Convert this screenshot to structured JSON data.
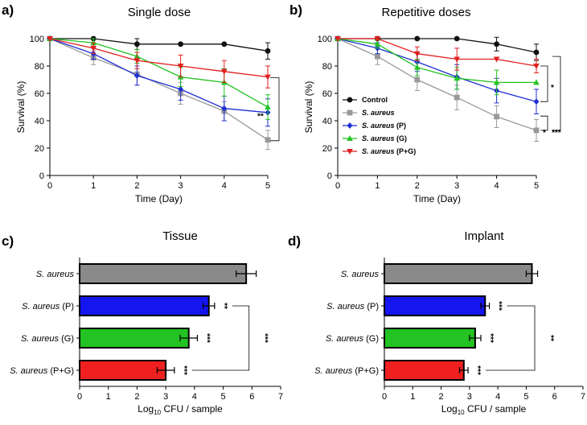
{
  "chart_data": [
    {
      "id": "a",
      "type": "line",
      "panel_label": "a)",
      "title": "Single dose",
      "xlabel": "Time (Day)",
      "ylabel": "Survival (%)",
      "xlim": [
        0,
        5
      ],
      "ylim": [
        0,
        100
      ],
      "x_ticks": [
        "0",
        "1",
        "2",
        "3",
        "4",
        "5"
      ],
      "y_ticks": [
        "0",
        "20",
        "40",
        "60",
        "80",
        "100"
      ],
      "x": [
        0,
        1,
        2,
        3,
        4,
        5
      ],
      "series": [
        {
          "name": "Control",
          "color": "#111111",
          "marker": "circle",
          "values": [
            100,
            100,
            96,
            96,
            96,
            91
          ],
          "errors": [
            0,
            0,
            4,
            0,
            0,
            6
          ]
        },
        {
          "name": "S. aureus",
          "color": "#999999",
          "marker": "square",
          "values": [
            100,
            86,
            74,
            60,
            47,
            26
          ],
          "errors": [
            0,
            5,
            8,
            8,
            7,
            7
          ]
        },
        {
          "name": "S. aureus (P)",
          "color": "#1f2fd6",
          "marker": "diamond",
          "values": [
            100,
            89,
            73,
            63,
            49,
            46
          ],
          "errors": [
            0,
            4,
            7,
            8,
            9,
            10
          ]
        },
        {
          "name": "S. aureus (G)",
          "color": "#22c322",
          "marker": "triangle-up",
          "values": [
            100,
            97,
            87,
            72,
            68,
            50
          ],
          "errors": [
            0,
            3,
            5,
            7,
            10,
            9
          ]
        },
        {
          "name": "S. aureus (P+G)",
          "color": "#e01f1f",
          "marker": "triangle-down",
          "values": [
            100,
            93,
            84,
            80,
            76,
            72
          ],
          "errors": [
            0,
            4,
            6,
            8,
            8,
            8
          ]
        }
      ],
      "significance": [
        {
          "label": "**",
          "between": [
            "S. aureus",
            "S. aureus (P+G)"
          ]
        }
      ]
    },
    {
      "id": "b",
      "type": "line",
      "panel_label": "b)",
      "title": "Repetitive doses",
      "xlabel": "Time (Day)",
      "ylabel": "Survival (%)",
      "xlim": [
        0,
        5
      ],
      "ylim": [
        0,
        100
      ],
      "x_ticks": [
        "0",
        "1",
        "2",
        "3",
        "4",
        "5"
      ],
      "y_ticks": [
        "0",
        "20",
        "40",
        "60",
        "80",
        "100"
      ],
      "x": [
        0,
        1,
        2,
        3,
        4,
        5
      ],
      "legend_placement": "bottom-left",
      "series": [
        {
          "name": "Control",
          "color": "#111111",
          "marker": "circle",
          "values": [
            100,
            100,
            100,
            100,
            96,
            90
          ],
          "errors": [
            0,
            0,
            0,
            0,
            5,
            6
          ]
        },
        {
          "name": "S. aureus",
          "color": "#999999",
          "marker": "square",
          "values": [
            100,
            87,
            70,
            57,
            43,
            33
          ],
          "errors": [
            0,
            6,
            8,
            9,
            8,
            8
          ]
        },
        {
          "name": "S. aureus (P)",
          "color": "#1f2fd6",
          "marker": "diamond",
          "values": [
            100,
            93,
            83,
            72,
            62,
            54
          ],
          "errors": [
            0,
            4,
            7,
            9,
            9,
            9
          ]
        },
        {
          "name": "S. aureus (G)",
          "color": "#22c322",
          "marker": "triangle-up",
          "values": [
            100,
            96,
            79,
            71,
            68,
            68
          ],
          "errors": [
            0,
            3,
            6,
            8,
            9,
            0
          ]
        },
        {
          "name": "S. aureus (P+G)",
          "color": "#e01f1f",
          "marker": "triangle-down",
          "values": [
            100,
            100,
            89,
            85,
            85,
            80
          ],
          "errors": [
            0,
            0,
            5,
            8,
            0,
            5
          ]
        }
      ],
      "legend": [
        {
          "prefix": "Control",
          "suffix": ""
        },
        {
          "prefix": "S. aureus",
          "suffix": ""
        },
        {
          "prefix": "S. aureus",
          "suffix": " (P)"
        },
        {
          "prefix": "S. aureus",
          "suffix": " (G)"
        },
        {
          "prefix": "S. aureus",
          "suffix": " (P+G)"
        }
      ],
      "significance": [
        {
          "label": "*",
          "between": [
            "S. aureus (P)",
            "S. aureus (P+G)"
          ]
        },
        {
          "label": "*",
          "between": [
            "S. aureus",
            "S. aureus (P)"
          ]
        },
        {
          "label": "***",
          "between": [
            "S. aureus",
            "S. aureus (P+G)"
          ]
        }
      ]
    },
    {
      "id": "c",
      "type": "bar",
      "orientation": "horizontal",
      "panel_label": "c)",
      "title": "Tissue",
      "xlabel_base": "Log",
      "xlabel_sub": "10",
      "xlabel_rest": " CFU / sample",
      "xlim": [
        0,
        7
      ],
      "x_ticks": [
        "0",
        "1",
        "2",
        "3",
        "4",
        "5",
        "6",
        "7"
      ],
      "categories": [
        {
          "italic": "S. aureus",
          "plain": ""
        },
        {
          "italic": "S. aureus",
          "plain": " (P)"
        },
        {
          "italic": "S. aureus",
          "plain": " (G)"
        },
        {
          "italic": "S. aureus",
          "plain": " (P+G)"
        }
      ],
      "values": [
        5.8,
        4.5,
        3.8,
        3.0
      ],
      "errors": [
        0.35,
        0.2,
        0.3,
        0.3
      ],
      "colors": [
        "#8a8a8a",
        "#1515f0",
        "#22c322",
        "#f02020"
      ],
      "bar_stars": [
        "",
        "**",
        "***",
        "***"
      ],
      "bracket": {
        "label": "***",
        "from": 1,
        "to": 3
      }
    },
    {
      "id": "d",
      "type": "bar",
      "orientation": "horizontal",
      "panel_label": "d)",
      "title": "Implant",
      "xlabel_base": "Log",
      "xlabel_sub": "10",
      "xlabel_rest": " CFU / sample",
      "xlim": [
        0,
        7
      ],
      "x_ticks": [
        "0",
        "1",
        "2",
        "3",
        "4",
        "5",
        "6",
        "7"
      ],
      "categories": [
        {
          "italic": "S. aureus",
          "plain": ""
        },
        {
          "italic": "S. aureus",
          "plain": " (P)"
        },
        {
          "italic": "S. aureus",
          "plain": " (G)"
        },
        {
          "italic": "S. aureus",
          "plain": " (P+G)"
        }
      ],
      "values": [
        5.2,
        3.55,
        3.2,
        2.8
      ],
      "errors": [
        0.2,
        0.15,
        0.2,
        0.15
      ],
      "colors": [
        "#8a8a8a",
        "#1515f0",
        "#22c322",
        "#f02020"
      ],
      "bar_stars": [
        "",
        "***",
        "***",
        "***"
      ],
      "bracket": {
        "label": "**",
        "from": 1,
        "to": 3
      }
    }
  ]
}
